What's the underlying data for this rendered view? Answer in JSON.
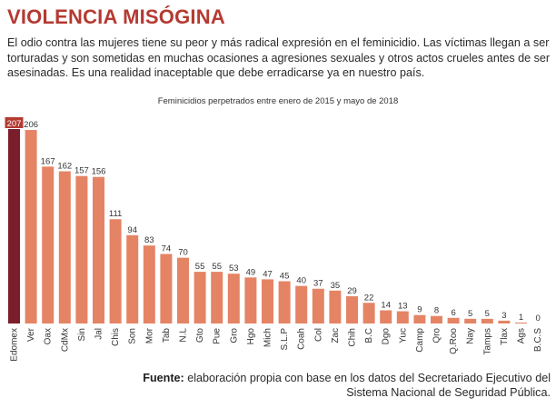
{
  "header": {
    "title": "VIOLENCIA MISÓGINA",
    "intro": "El odio contra las mujeres tiene su peor y más radical expresión en el feminicidio. Las víctimas llegan a ser torturadas y son sometidas en muchas ocasiones a agresiones sexuales y otros actos crueles antes de ser asesinadas. Es una realidad inaceptable que debe erradicarse ya en nuestro país."
  },
  "footer": {
    "source_label": "Fuente:",
    "source_text": "elaboración propia con base en los datos del Secretariado Ejecutivo del Sistema Nacional de Seguridad Pública."
  },
  "colors": {
    "title": "#b43a32",
    "bar": "#e48465",
    "highlight_bar": "#7a1e2c",
    "highlight_label": "#b43a32"
  },
  "chart_data": {
    "type": "bar",
    "title": "Feminicidios perpetrados entre enero de 2015 y mayo de 2018",
    "categories": [
      "Edomex",
      "Ver",
      "Oax",
      "CdMx",
      "Sin",
      "Jal",
      "Chis",
      "Son",
      "Mor",
      "Tab",
      "N.L",
      "Gto",
      "Pue",
      "Gro",
      "Hgo",
      "Mich",
      "S.L.P",
      "Coah",
      "Col",
      "Zac",
      "Chih",
      "B.C",
      "Dgo",
      "Yuc",
      "Camp",
      "Qro",
      "Q.Roo",
      "Nay",
      "Tamps",
      "Tlax",
      "Ags",
      "B.C.S"
    ],
    "values": [
      207,
      206,
      167,
      162,
      157,
      156,
      111,
      94,
      83,
      74,
      70,
      55,
      55,
      53,
      49,
      47,
      45,
      40,
      37,
      35,
      29,
      22,
      14,
      13,
      9,
      8,
      6,
      5,
      5,
      3,
      1,
      0
    ],
    "highlight_index": 0,
    "ylim": [
      0,
      207
    ],
    "grid": false,
    "xlabel": "",
    "ylabel": ""
  }
}
